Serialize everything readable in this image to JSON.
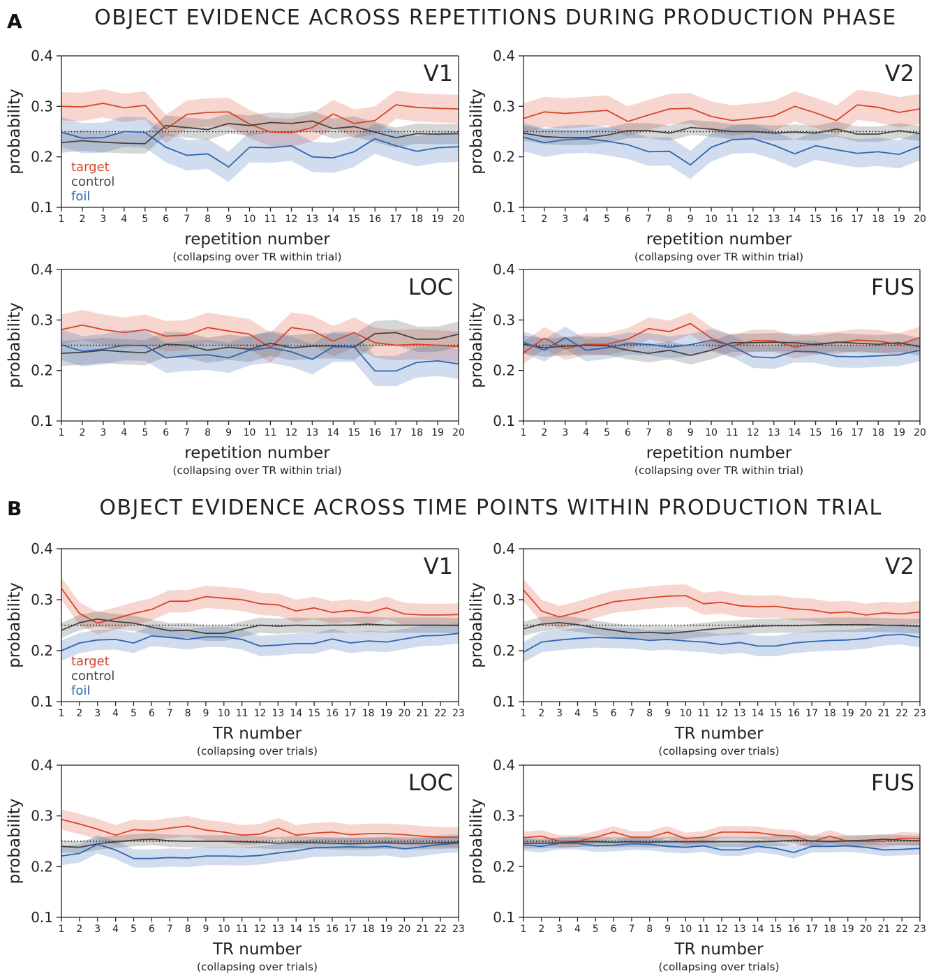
{
  "sections": [
    {
      "letter": "A",
      "title": "OBJECT EVIDENCE ACROSS REPETITIONS DURING PRODUCTION PHASE"
    },
    {
      "letter": "B",
      "title": "OBJECT EVIDENCE ACROSS TIME POINTS WITHIN PRODUCTION TRIAL"
    }
  ],
  "colors": {
    "target": "#d9442a",
    "control": "#444444",
    "foil": "#2f64b0"
  },
  "chart_data": [
    {
      "type": "line",
      "section": "A",
      "region": "V1",
      "xlabel": "repetition number",
      "xsub": "(collapsing over TR within trial)",
      "ylabel": "probability",
      "ylim": [
        0.1,
        0.4
      ],
      "yticks": [
        "0.1",
        "0.2",
        "0.3",
        "0.4"
      ],
      "chance": 0.25,
      "legend": [
        "target",
        "control",
        "foil"
      ],
      "x": [
        1,
        2,
        3,
        4,
        5,
        6,
        7,
        8,
        9,
        10,
        11,
        12,
        13,
        14,
        15,
        16,
        17,
        18,
        19,
        20
      ],
      "series": [
        {
          "name": "target",
          "values": [
            0.3,
            0.299,
            0.306,
            0.297,
            0.302,
            0.255,
            0.284,
            0.288,
            0.289,
            0.265,
            0.249,
            0.248,
            0.258,
            0.285,
            0.266,
            0.272,
            0.303,
            0.298,
            0.296,
            0.295
          ],
          "err": 0.028
        },
        {
          "name": "control",
          "values": [
            0.228,
            0.232,
            0.229,
            0.227,
            0.226,
            0.262,
            0.258,
            0.254,
            0.266,
            0.262,
            0.268,
            0.266,
            0.271,
            0.256,
            0.26,
            0.249,
            0.238,
            0.246,
            0.245,
            0.246
          ],
          "err": 0.02
        },
        {
          "name": "foil",
          "values": [
            0.249,
            0.237,
            0.238,
            0.25,
            0.248,
            0.219,
            0.203,
            0.206,
            0.18,
            0.219,
            0.218,
            0.222,
            0.2,
            0.198,
            0.21,
            0.236,
            0.222,
            0.211,
            0.218,
            0.22
          ],
          "err": 0.03
        }
      ]
    },
    {
      "type": "line",
      "section": "A",
      "region": "V2",
      "xlabel": "repetition number",
      "xsub": "(collapsing over TR within trial)",
      "ylabel": "probability",
      "ylim": [
        0.1,
        0.4
      ],
      "yticks": [
        "0.1",
        "0.2",
        "0.3",
        "0.4"
      ],
      "chance": 0.25,
      "x": [
        1,
        2,
        3,
        4,
        5,
        6,
        7,
        8,
        9,
        10,
        11,
        12,
        13,
        14,
        15,
        16,
        17,
        18,
        19,
        20
      ],
      "series": [
        {
          "name": "target",
          "values": [
            0.276,
            0.289,
            0.286,
            0.289,
            0.292,
            0.27,
            0.283,
            0.295,
            0.296,
            0.28,
            0.272,
            0.276,
            0.281,
            0.3,
            0.287,
            0.272,
            0.303,
            0.298,
            0.288,
            0.295
          ],
          "err": 0.03
        },
        {
          "name": "control",
          "values": [
            0.247,
            0.24,
            0.238,
            0.238,
            0.243,
            0.252,
            0.252,
            0.247,
            0.258,
            0.255,
            0.25,
            0.25,
            0.247,
            0.249,
            0.247,
            0.255,
            0.245,
            0.245,
            0.252,
            0.246
          ],
          "err": 0.015
        },
        {
          "name": "foil",
          "values": [
            0.239,
            0.228,
            0.234,
            0.236,
            0.231,
            0.224,
            0.21,
            0.211,
            0.184,
            0.219,
            0.234,
            0.236,
            0.223,
            0.206,
            0.222,
            0.214,
            0.207,
            0.21,
            0.205,
            0.221
          ],
          "err": 0.028
        }
      ]
    },
    {
      "type": "line",
      "section": "A",
      "region": "LOC",
      "xlabel": "repetition number",
      "xsub": "(collapsing over TR within trial)",
      "ylabel": "probability",
      "ylim": [
        0.1,
        0.4
      ],
      "yticks": [
        "0.1",
        "0.2",
        "0.3",
        "0.4"
      ],
      "chance": 0.25,
      "x": [
        1,
        2,
        3,
        4,
        5,
        6,
        7,
        8,
        9,
        10,
        11,
        12,
        13,
        14,
        15,
        16,
        17,
        18,
        19,
        20
      ],
      "series": [
        {
          "name": "target",
          "values": [
            0.281,
            0.29,
            0.281,
            0.275,
            0.281,
            0.268,
            0.27,
            0.285,
            0.278,
            0.272,
            0.245,
            0.285,
            0.279,
            0.258,
            0.275,
            0.255,
            0.25,
            0.252,
            0.25,
            0.247
          ],
          "err": 0.03
        },
        {
          "name": "control",
          "values": [
            0.234,
            0.236,
            0.24,
            0.237,
            0.235,
            0.252,
            0.25,
            0.24,
            0.246,
            0.242,
            0.254,
            0.245,
            0.248,
            0.249,
            0.246,
            0.273,
            0.275,
            0.262,
            0.262,
            0.272
          ],
          "err": 0.025
        },
        {
          "name": "foil",
          "values": [
            0.251,
            0.238,
            0.242,
            0.25,
            0.249,
            0.225,
            0.229,
            0.231,
            0.225,
            0.24,
            0.245,
            0.237,
            0.222,
            0.247,
            0.247,
            0.199,
            0.199,
            0.216,
            0.219,
            0.213
          ],
          "err": 0.03
        }
      ]
    },
    {
      "type": "line",
      "section": "A",
      "region": "FUS",
      "xlabel": "repetition number",
      "xsub": "(collapsing over TR within trial)",
      "ylabel": "probability",
      "ylim": [
        0.1,
        0.4
      ],
      "yticks": [
        "0.1",
        "0.2",
        "0.3",
        "0.4"
      ],
      "chance": 0.25,
      "x": [
        1,
        2,
        3,
        4,
        5,
        6,
        7,
        8,
        9,
        10,
        11,
        12,
        13,
        14,
        15,
        16,
        17,
        18,
        19,
        20
      ],
      "series": [
        {
          "name": "target",
          "values": [
            0.235,
            0.264,
            0.243,
            0.252,
            0.252,
            0.262,
            0.283,
            0.277,
            0.293,
            0.264,
            0.248,
            0.259,
            0.259,
            0.246,
            0.253,
            0.255,
            0.26,
            0.258,
            0.252,
            0.265
          ],
          "err": 0.022
        },
        {
          "name": "control",
          "values": [
            0.252,
            0.245,
            0.248,
            0.25,
            0.249,
            0.24,
            0.234,
            0.24,
            0.23,
            0.24,
            0.255,
            0.255,
            0.256,
            0.255,
            0.251,
            0.256,
            0.254,
            0.252,
            0.255,
            0.247
          ],
          "err": 0.018
        },
        {
          "name": "foil",
          "values": [
            0.256,
            0.24,
            0.265,
            0.24,
            0.245,
            0.253,
            0.252,
            0.246,
            0.251,
            0.26,
            0.248,
            0.227,
            0.225,
            0.238,
            0.237,
            0.228,
            0.227,
            0.229,
            0.231,
            0.24
          ],
          "err": 0.022
        }
      ]
    },
    {
      "type": "line",
      "section": "B",
      "region": "V1",
      "xlabel": "TR number",
      "xsub": "(collapsing over trials)",
      "ylabel": "probability",
      "ylim": [
        0.1,
        0.4
      ],
      "yticks": [
        "0.1",
        "0.2",
        "0.3",
        "0.4"
      ],
      "chance": 0.25,
      "legend": [
        "target",
        "control",
        "foil"
      ],
      "x": [
        1,
        2,
        3,
        4,
        5,
        6,
        7,
        8,
        9,
        10,
        11,
        12,
        13,
        14,
        15,
        16,
        17,
        18,
        19,
        20,
        21,
        22,
        23
      ],
      "series": [
        {
          "name": "target",
          "values": [
            0.322,
            0.273,
            0.254,
            0.263,
            0.273,
            0.281,
            0.297,
            0.297,
            0.306,
            0.303,
            0.3,
            0.292,
            0.29,
            0.278,
            0.284,
            0.275,
            0.279,
            0.274,
            0.284,
            0.272,
            0.27,
            0.27,
            0.271
          ],
          "err": 0.022
        },
        {
          "name": "control",
          "values": [
            0.24,
            0.255,
            0.262,
            0.257,
            0.254,
            0.246,
            0.239,
            0.24,
            0.234,
            0.234,
            0.242,
            0.25,
            0.248,
            0.25,
            0.249,
            0.25,
            0.25,
            0.252,
            0.25,
            0.25,
            0.25,
            0.25,
            0.249
          ],
          "err": 0.015
        },
        {
          "name": "foil",
          "values": [
            0.2,
            0.215,
            0.221,
            0.222,
            0.215,
            0.229,
            0.226,
            0.222,
            0.227,
            0.227,
            0.222,
            0.209,
            0.211,
            0.214,
            0.214,
            0.223,
            0.215,
            0.219,
            0.217,
            0.223,
            0.229,
            0.23,
            0.234
          ],
          "err": 0.02
        }
      ]
    },
    {
      "type": "line",
      "section": "B",
      "region": "V2",
      "xlabel": "TR number",
      "xsub": "(collapsing over trials)",
      "ylabel": "probability",
      "ylim": [
        0.1,
        0.4
      ],
      "yticks": [
        "0.1",
        "0.2",
        "0.3",
        "0.4"
      ],
      "chance": 0.25,
      "x": [
        1,
        2,
        3,
        4,
        5,
        6,
        7,
        8,
        9,
        10,
        11,
        12,
        13,
        14,
        15,
        16,
        17,
        18,
        19,
        20,
        21,
        22,
        23
      ],
      "series": [
        {
          "name": "target",
          "values": [
            0.319,
            0.278,
            0.266,
            0.275,
            0.286,
            0.296,
            0.3,
            0.304,
            0.307,
            0.308,
            0.292,
            0.295,
            0.288,
            0.286,
            0.287,
            0.282,
            0.28,
            0.274,
            0.276,
            0.27,
            0.274,
            0.272,
            0.276
          ],
          "err": 0.022
        },
        {
          "name": "control",
          "values": [
            0.243,
            0.252,
            0.255,
            0.251,
            0.245,
            0.24,
            0.235,
            0.236,
            0.234,
            0.237,
            0.241,
            0.244,
            0.246,
            0.248,
            0.249,
            0.249,
            0.25,
            0.251,
            0.251,
            0.251,
            0.25,
            0.249,
            0.248
          ],
          "err": 0.014
        },
        {
          "name": "foil",
          "values": [
            0.197,
            0.217,
            0.221,
            0.224,
            0.226,
            0.225,
            0.224,
            0.22,
            0.222,
            0.219,
            0.217,
            0.212,
            0.216,
            0.209,
            0.209,
            0.215,
            0.218,
            0.22,
            0.221,
            0.224,
            0.23,
            0.232,
            0.226
          ],
          "err": 0.02
        }
      ]
    },
    {
      "type": "line",
      "section": "B",
      "region": "LOC",
      "xlabel": "TR number",
      "xsub": "(collapsing over trials)",
      "ylabel": "probability",
      "ylim": [
        0.1,
        0.4
      ],
      "yticks": [
        "0.1",
        "0.2",
        "0.3",
        "0.4"
      ],
      "chance": 0.25,
      "x": [
        1,
        2,
        3,
        4,
        5,
        6,
        7,
        8,
        9,
        10,
        11,
        12,
        13,
        14,
        15,
        16,
        17,
        18,
        19,
        20,
        21,
        22,
        23
      ],
      "series": [
        {
          "name": "target",
          "values": [
            0.293,
            0.284,
            0.274,
            0.262,
            0.273,
            0.271,
            0.276,
            0.28,
            0.272,
            0.268,
            0.262,
            0.264,
            0.276,
            0.262,
            0.266,
            0.268,
            0.263,
            0.265,
            0.265,
            0.263,
            0.26,
            0.258,
            0.258
          ],
          "err": 0.02
        },
        {
          "name": "control",
          "values": [
            0.24,
            0.238,
            0.245,
            0.249,
            0.252,
            0.254,
            0.251,
            0.25,
            0.25,
            0.25,
            0.249,
            0.248,
            0.246,
            0.248,
            0.247,
            0.246,
            0.245,
            0.246,
            0.247,
            0.246,
            0.246,
            0.247,
            0.248
          ],
          "err": 0.012
        },
        {
          "name": "foil",
          "values": [
            0.221,
            0.226,
            0.244,
            0.233,
            0.216,
            0.216,
            0.218,
            0.217,
            0.221,
            0.221,
            0.22,
            0.222,
            0.227,
            0.231,
            0.237,
            0.238,
            0.239,
            0.238,
            0.24,
            0.235,
            0.239,
            0.244,
            0.246
          ],
          "err": 0.018
        }
      ]
    },
    {
      "type": "line",
      "section": "B",
      "region": "FUS",
      "xlabel": "TR number",
      "xsub": "(collapsing over trials)",
      "ylabel": "probability",
      "ylim": [
        0.1,
        0.4
      ],
      "yticks": [
        "0.1",
        "0.2",
        "0.3",
        "0.4"
      ],
      "chance": 0.25,
      "x": [
        1,
        2,
        3,
        4,
        5,
        6,
        7,
        8,
        9,
        10,
        11,
        12,
        13,
        14,
        15,
        16,
        17,
        18,
        19,
        20,
        21,
        22,
        23
      ],
      "series": [
        {
          "name": "target",
          "values": [
            0.257,
            0.26,
            0.25,
            0.25,
            0.258,
            0.268,
            0.258,
            0.258,
            0.268,
            0.255,
            0.258,
            0.268,
            0.268,
            0.267,
            0.262,
            0.26,
            0.249,
            0.26,
            0.25,
            0.25,
            0.25,
            0.256,
            0.255
          ],
          "err": 0.012
        },
        {
          "name": "control",
          "values": [
            0.246,
            0.246,
            0.247,
            0.249,
            0.249,
            0.248,
            0.249,
            0.248,
            0.249,
            0.249,
            0.249,
            0.249,
            0.249,
            0.249,
            0.25,
            0.252,
            0.251,
            0.249,
            0.251,
            0.252,
            0.254,
            0.252,
            0.251
          ],
          "err": 0.01
        },
        {
          "name": "foil",
          "values": [
            0.243,
            0.24,
            0.246,
            0.246,
            0.241,
            0.242,
            0.245,
            0.244,
            0.24,
            0.238,
            0.241,
            0.233,
            0.233,
            0.24,
            0.236,
            0.228,
            0.24,
            0.24,
            0.241,
            0.238,
            0.233,
            0.234,
            0.236
          ],
          "err": 0.012
        }
      ]
    }
  ]
}
